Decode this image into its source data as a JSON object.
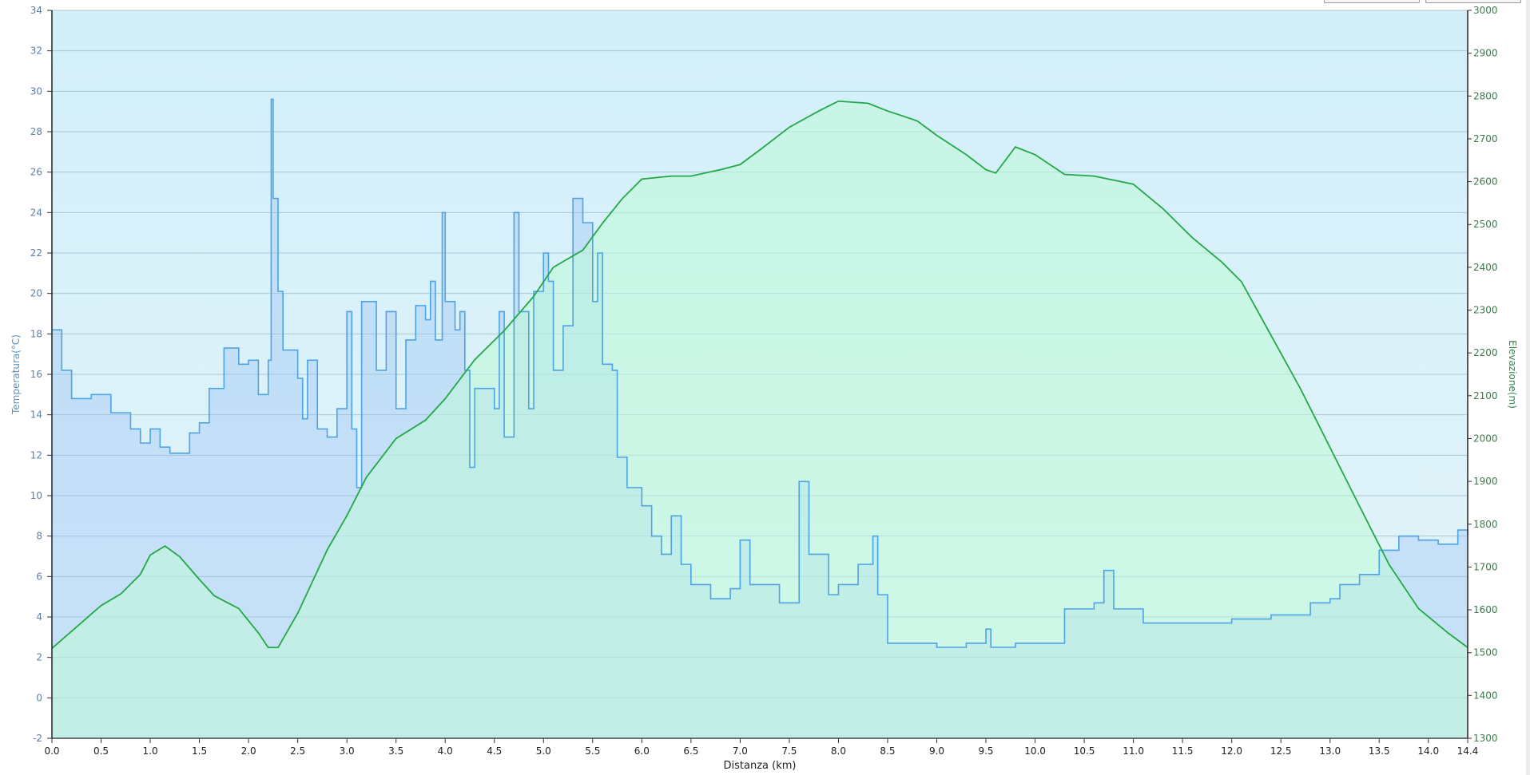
{
  "chart_data": {
    "type": "line",
    "xlabel": "Distanza  (km)",
    "ylabel_left": "Temperatura(°C)",
    "ylabel_right": "Elevazione(m)",
    "xlim": [
      0,
      14.4
    ],
    "ylim_left": [
      -2,
      34
    ],
    "ylim_right": [
      1300,
      3000
    ],
    "grid": true,
    "x_ticks": [
      "0.0",
      "0.5",
      "1.0",
      "1.5",
      "2.0",
      "2.5",
      "3.0",
      "3.5",
      "4.0",
      "4.5",
      "5.0",
      "5.5",
      "6.0",
      "6.5",
      "7.0",
      "7.5",
      "8.0",
      "8.5",
      "9.0",
      "9.5",
      "10.0",
      "10.5",
      "11.0",
      "11.5",
      "12.0",
      "12.5",
      "13.0",
      "13.5",
      "14.0",
      "14.4"
    ],
    "y_left_ticks": [
      -2,
      0,
      2,
      4,
      6,
      8,
      10,
      12,
      14,
      16,
      18,
      20,
      22,
      24,
      26,
      28,
      30,
      32,
      34
    ],
    "y_right_ticks": [
      1300,
      1400,
      1500,
      1600,
      1700,
      1800,
      1900,
      2000,
      2100,
      2200,
      2300,
      2400,
      2500,
      2600,
      2700,
      2800,
      2900,
      3000
    ],
    "colors": {
      "temperature": "#4da3e6",
      "elevation": "#22a844",
      "background_top": "#d2effa",
      "background_bottom": "#e3f3f8"
    },
    "series": [
      {
        "axis": "left",
        "style": "step",
        "x": [
          0,
          0.1,
          0.2,
          0.4,
          0.6,
          0.8,
          0.9,
          1.0,
          1.1,
          1.2,
          1.4,
          1.5,
          1.6,
          1.75,
          1.9,
          2.0,
          2.1,
          2.2,
          2.23,
          2.25,
          2.3,
          2.35,
          2.5,
          2.55,
          2.6,
          2.7,
          2.8,
          2.9,
          3.0,
          3.05,
          3.1,
          3.15,
          3.3,
          3.4,
          3.5,
          3.6,
          3.7,
          3.8,
          3.85,
          3.9,
          3.97,
          4.0,
          4.1,
          4.15,
          4.2,
          4.25,
          4.3,
          4.5,
          4.55,
          4.6,
          4.7,
          4.75,
          4.85,
          4.9,
          5.0,
          5.05,
          5.1,
          5.2,
          5.3,
          5.4,
          5.5,
          5.55,
          5.6,
          5.7,
          5.75,
          5.85,
          6.0,
          6.1,
          6.2,
          6.3,
          6.4,
          6.5,
          6.7,
          6.9,
          7.0,
          7.1,
          7.3,
          7.4,
          7.5,
          7.6,
          7.7,
          7.9,
          8.0,
          8.2,
          8.35,
          8.4,
          8.5,
          9.0,
          9.3,
          9.5,
          9.55,
          9.8,
          10.2,
          10.3,
          10.6,
          10.7,
          10.8,
          11.1,
          11.5,
          12.0,
          12.4,
          12.8,
          13.0,
          13.1,
          13.3,
          13.5,
          13.7,
          13.9,
          14.1,
          14.3,
          14.4
        ],
        "y": [
          18.2,
          16.2,
          14.8,
          15.0,
          14.1,
          13.3,
          12.6,
          13.3,
          12.4,
          12.1,
          13.1,
          13.6,
          15.3,
          17.3,
          16.5,
          16.7,
          15.0,
          16.7,
          29.6,
          24.7,
          20.1,
          17.2,
          15.8,
          13.8,
          16.7,
          13.3,
          12.9,
          14.3,
          19.1,
          13.3,
          10.4,
          19.6,
          16.2,
          19.1,
          14.3,
          17.7,
          19.4,
          18.7,
          20.6,
          17.7,
          24.0,
          19.6,
          18.2,
          19.1,
          16.2,
          11.4,
          15.3,
          14.3,
          19.1,
          12.9,
          24.0,
          19.1,
          14.3,
          20.1,
          22.0,
          20.6,
          16.2,
          18.4,
          24.7,
          23.5,
          19.6,
          22.0,
          16.5,
          16.2,
          11.9,
          10.4,
          9.5,
          8.0,
          7.1,
          9.0,
          6.6,
          5.6,
          4.9,
          5.4,
          7.8,
          5.6,
          5.6,
          4.7,
          4.7,
          10.7,
          7.1,
          5.1,
          5.6,
          6.6,
          8.0,
          5.1,
          2.7,
          2.5,
          2.7,
          3.4,
          2.5,
          2.7,
          2.7,
          4.4,
          4.7,
          6.3,
          4.4,
          3.7,
          3.7,
          3.9,
          4.1,
          4.7,
          4.9,
          5.6,
          6.1,
          7.3,
          8.0,
          7.8,
          7.6,
          8.3,
          8.1
        ]
      },
      {
        "axis": "right",
        "style": "line",
        "x": [
          0,
          0.3,
          0.5,
          0.7,
          0.9,
          1.0,
          1.15,
          1.3,
          1.5,
          1.65,
          1.9,
          2.1,
          2.2,
          2.3,
          2.5,
          2.8,
          3.0,
          3.2,
          3.5,
          3.8,
          4.0,
          4.3,
          4.6,
          4.9,
          5.1,
          5.4,
          5.6,
          5.8,
          6.0,
          6.3,
          6.5,
          6.8,
          7.0,
          7.2,
          7.5,
          7.8,
          8.0,
          8.3,
          8.5,
          8.8,
          9.0,
          9.3,
          9.5,
          9.6,
          9.8,
          10.0,
          10.3,
          10.6,
          11.0,
          11.3,
          11.6,
          11.9,
          12.1,
          12.4,
          12.7,
          13.0,
          13.3,
          13.6,
          13.9,
          14.2,
          14.4
        ],
        "y": [
          1510,
          1570,
          1610,
          1637,
          1683,
          1728,
          1749,
          1724,
          1671,
          1633,
          1603,
          1546,
          1512,
          1512,
          1592,
          1740,
          1820,
          1910,
          2000,
          2043,
          2093,
          2184,
          2252,
          2332,
          2400,
          2440,
          2503,
          2560,
          2606,
          2613,
          2613,
          2628,
          2640,
          2674,
          2727,
          2765,
          2788,
          2783,
          2765,
          2742,
          2708,
          2663,
          2628,
          2620,
          2681,
          2663,
          2617,
          2613,
          2594,
          2537,
          2469,
          2412,
          2366,
          2241,
          2116,
          1979,
          1842,
          1706,
          1603,
          1546,
          1512
        ]
      }
    ]
  }
}
